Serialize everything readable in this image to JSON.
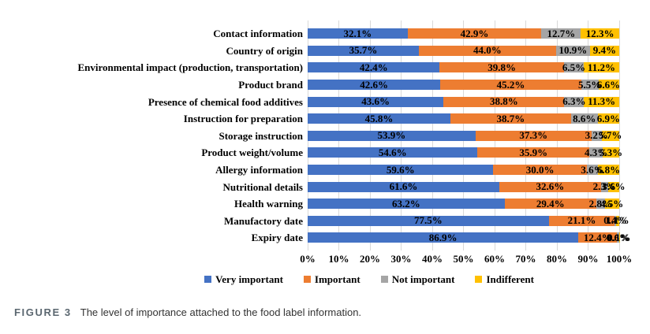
{
  "figure": {
    "label": "FIGURE 3",
    "caption": "The level of importance attached to the food label information."
  },
  "chart_data": {
    "type": "bar",
    "stacked": true,
    "orientation": "horizontal",
    "title": "",
    "xlabel": "",
    "ylabel": "",
    "xlim": [
      0,
      100
    ],
    "x_ticks": [
      "0%",
      "10%",
      "20%",
      "30%",
      "40%",
      "50%",
      "60%",
      "70%",
      "80%",
      "90%",
      "100%"
    ],
    "grid": true,
    "legend_position": "bottom",
    "value_label_format": "one_decimal_percent",
    "categories": [
      "Contact information",
      "Country of origin",
      "Environmental impact (production, transportation)",
      "Product brand",
      "Presence of chemical food additives",
      "Instruction for preparation",
      "Storage instruction",
      "Product weight/volume",
      "Allergy information",
      "Nutritional details",
      "Health warning",
      "Manufactory date",
      "Expiry date"
    ],
    "series": [
      {
        "name": "Very important",
        "color": "#4472C4",
        "values": [
          32.1,
          35.7,
          42.4,
          42.6,
          43.6,
          45.8,
          53.9,
          54.6,
          59.6,
          61.6,
          63.2,
          77.5,
          86.9
        ]
      },
      {
        "name": "Important",
        "color": "#ED7D31",
        "values": [
          42.9,
          44.0,
          39.8,
          45.2,
          38.8,
          38.7,
          37.3,
          35.9,
          30.0,
          32.6,
          29.4,
          21.1,
          12.4
        ]
      },
      {
        "name": "Not important",
        "color": "#A5A5A5",
        "values": [
          12.7,
          10.9,
          6.5,
          5.5,
          6.3,
          8.6,
          3.2,
          4.3,
          3.6,
          2.3,
          2.8,
          0.4,
          0.6
        ]
      },
      {
        "name": "Indifferent",
        "color": "#FFC000",
        "values": [
          12.3,
          9.4,
          11.2,
          6.6,
          11.3,
          6.9,
          5.7,
          5.3,
          6.8,
          3.6,
          4.5,
          1.1,
          0.1
        ]
      }
    ]
  },
  "colors": {
    "grid": "#D9D9D9",
    "chart_text": "#000000",
    "figure_label": "#5B6770",
    "caption_text": "#333333",
    "background": "#FFFFFF"
  }
}
